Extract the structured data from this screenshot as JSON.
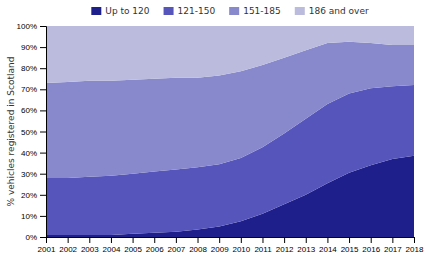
{
  "chart_data": {
    "type": "area",
    "stacked": true,
    "y_label": "% vehicles registered in Scotland",
    "x": [
      2001,
      2002,
      2003,
      2004,
      2005,
      2006,
      2007,
      2008,
      2009,
      2010,
      2011,
      2012,
      2013,
      2014,
      2015,
      2016,
      2017,
      2018
    ],
    "series": [
      {
        "name": "Up to 120",
        "color": "#1f1f8c",
        "values": [
          1.0,
          1.0,
          1.0,
          1.0,
          1.5,
          2.0,
          2.5,
          3.5,
          5.0,
          7.5,
          11.0,
          15.5,
          20.0,
          25.5,
          30.5,
          34.0,
          37.0,
          38.5
        ]
      },
      {
        "name": "121-150",
        "color": "#5555bb",
        "values": [
          27.0,
          27.0,
          27.5,
          28.0,
          28.5,
          29.0,
          29.5,
          29.5,
          29.5,
          30.0,
          31.5,
          33.5,
          36.0,
          37.5,
          37.5,
          36.5,
          34.5,
          33.5
        ]
      },
      {
        "name": "151-185",
        "color": "#8888cc",
        "values": [
          45.0,
          45.5,
          45.5,
          45.0,
          44.5,
          44.0,
          43.5,
          42.5,
          42.0,
          41.0,
          39.0,
          36.0,
          32.5,
          29.0,
          24.5,
          21.5,
          19.5,
          19.0
        ]
      },
      {
        "name": "186 and over",
        "color": "#bbbbdd",
        "values": [
          27.0,
          26.5,
          26.0,
          26.0,
          25.5,
          25.0,
          24.5,
          24.5,
          23.5,
          21.5,
          18.5,
          15.0,
          11.5,
          8.0,
          7.5,
          8.0,
          9.0,
          9.0
        ]
      }
    ],
    "xlim": [
      2001,
      2018
    ],
    "xticks": [
      2001,
      2002,
      2003,
      2004,
      2005,
      2006,
      2007,
      2008,
      2009,
      2010,
      2011,
      2012,
      2013,
      2014,
      2015,
      2016,
      2017,
      2018
    ],
    "ylim": [
      0,
      100
    ],
    "yticks": [
      {
        "value": 0,
        "label": "0%"
      },
      {
        "value": 10,
        "label": "10%"
      },
      {
        "value": 20,
        "label": "20%"
      },
      {
        "value": 30,
        "label": "30%"
      },
      {
        "value": 40,
        "label": "40%"
      },
      {
        "value": 50,
        "label": "50%"
      },
      {
        "value": 60,
        "label": "60%"
      },
      {
        "value": 70,
        "label": "70%"
      },
      {
        "value": 80,
        "label": "80%"
      },
      {
        "value": 90,
        "label": "90%"
      },
      {
        "value": 100,
        "label": "100%"
      }
    ],
    "grid": false,
    "legend": "top"
  }
}
